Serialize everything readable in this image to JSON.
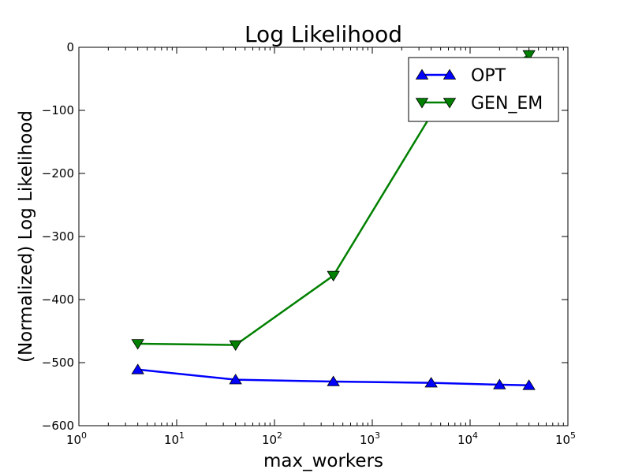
{
  "chart_data": {
    "type": "line",
    "title": "Log Likelihood",
    "xlabel": "max_workers",
    "ylabel": "(Normalized) Log Likelihood",
    "xscale": "log",
    "xlim": [
      1,
      100000
    ],
    "ylim": [
      -600,
      0
    ],
    "x_ticks": [
      {
        "value": 1,
        "base": "10",
        "exp": "0"
      },
      {
        "value": 10,
        "base": "10",
        "exp": "1"
      },
      {
        "value": 100,
        "base": "10",
        "exp": "2"
      },
      {
        "value": 1000,
        "base": "10",
        "exp": "3"
      },
      {
        "value": 10000,
        "base": "10",
        "exp": "4"
      },
      {
        "value": 100000,
        "base": "10",
        "exp": "5"
      }
    ],
    "y_ticks": [
      {
        "value": -600,
        "label": "−600"
      },
      {
        "value": -500,
        "label": "−500"
      },
      {
        "value": -400,
        "label": "−400"
      },
      {
        "value": -300,
        "label": "−300"
      },
      {
        "value": -200,
        "label": "−200"
      },
      {
        "value": -100,
        "label": "−100"
      },
      {
        "value": 0,
        "label": "0"
      }
    ],
    "grid": false,
    "legend_position": "top-right",
    "series": [
      {
        "name": "OPT",
        "color": "#0000ff",
        "marker": "triangle-up",
        "x": [
          4,
          40,
          400,
          4000,
          20000,
          40000
        ],
        "y": [
          -511,
          -527,
          -530,
          -532,
          -535,
          -536
        ]
      },
      {
        "name": "GEN_EM",
        "color": "#008000",
        "marker": "triangle-down",
        "x": [
          4,
          40,
          400,
          4000,
          40000
        ],
        "y": [
          -470,
          -472,
          -362,
          -107,
          -12
        ]
      }
    ]
  }
}
